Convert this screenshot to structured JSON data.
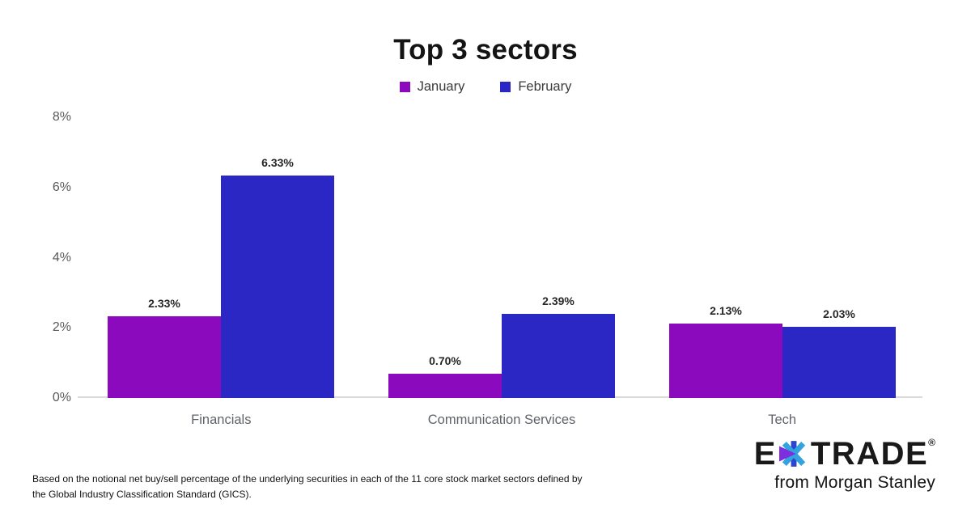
{
  "chart_data": {
    "type": "bar",
    "title": "Top 3 sectors",
    "categories": [
      "Financials",
      "Communication Services",
      "Tech"
    ],
    "series": [
      {
        "name": "January",
        "color": "#8C0ABE",
        "values": [
          2.33,
          0.7,
          2.13
        ],
        "labels": [
          "2.33%",
          "0.70%",
          "2.13%"
        ]
      },
      {
        "name": "February",
        "color": "#2B27C4",
        "values": [
          6.33,
          2.39,
          2.03
        ],
        "labels": [
          "6.33%",
          "2.39%",
          "2.03%"
        ]
      }
    ],
    "ylim": [
      0,
      8
    ],
    "yticks": [
      {
        "value": 0,
        "label": "0%"
      },
      {
        "value": 2,
        "label": "2%"
      },
      {
        "value": 4,
        "label": "4%"
      },
      {
        "value": 6,
        "label": "6%"
      },
      {
        "value": 8,
        "label": "8%"
      }
    ],
    "grid": false,
    "legend_position": "top"
  },
  "footnote": {
    "lines": [
      "Based on the notional net buy/sell percentage of the underlying securities in each of the 11 core stock market sectors defined by",
      "the Global Industry Classification Standard (GICS)."
    ]
  },
  "logo": {
    "left": "E",
    "right": "TRADE",
    "reg": "®",
    "subtitle": "from Morgan Stanley",
    "star_purple": "#7D2EDD",
    "star_cyan": "#33A3DF",
    "star_blue": "#2D45CE"
  }
}
